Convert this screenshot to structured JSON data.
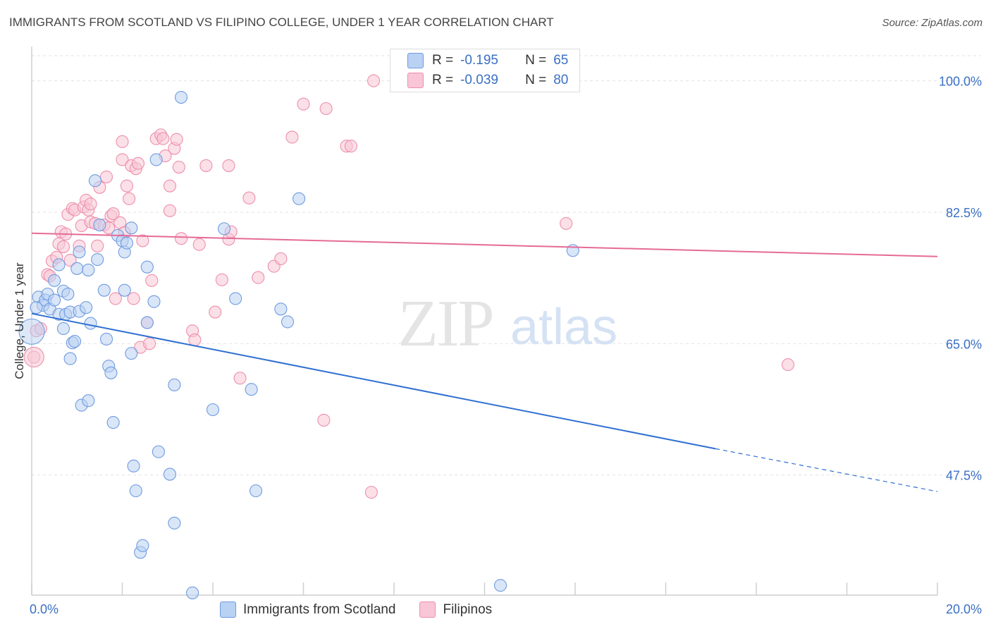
{
  "title": "IMMIGRANTS FROM SCOTLAND VS FILIPINO COLLEGE, UNDER 1 YEAR CORRELATION CHART",
  "source": "Source: ZipAtlas.com",
  "colors": {
    "blue_fill": "#b9d1f2",
    "blue_stroke": "#6f9be0",
    "blue_line": "#2f6fd1",
    "pink_fill": "#f8c6d6",
    "pink_stroke": "#ee8fac",
    "pink_line": "#e56b97",
    "tick_label": "#3a6fc4",
    "grid": "#e2e2e2"
  },
  "watermark": {
    "zip": "ZIP",
    "atlas": "atlas"
  },
  "correlation_box": {
    "rows": [
      {
        "r_label": "R =",
        "r_value": "-0.195",
        "n_label": "N =",
        "n_value": "65"
      },
      {
        "r_label": "R =",
        "r_value": "-0.039",
        "n_label": "N =",
        "n_value": "80"
      }
    ]
  },
  "chart_data": {
    "type": "scatter",
    "title": "IMMIGRANTS FROM SCOTLAND VS FILIPINO COLLEGE, UNDER 1 YEAR CORRELATION CHART",
    "xlabel": "",
    "ylabel": "College, Under 1 year",
    "xlim": [
      0,
      20
    ],
    "ylim": [
      31.5,
      104
    ],
    "x_tick_labels": [
      "0.0%",
      "20.0%"
    ],
    "y_ticks": [
      47.5,
      65.0,
      82.5,
      100.0
    ],
    "y_tick_labels": [
      "47.5%",
      "65.0%",
      "82.5%",
      "100.0%"
    ],
    "grid": true,
    "legend_position": "bottom-center",
    "series": [
      {
        "name": "Immigrants from Scotland",
        "color": "#6f9be0",
        "trend": {
          "x": [
            0,
            15.1,
            20
          ],
          "y": [
            69.0,
            51.0,
            45.3
          ],
          "solid_until_x": 15.1
        },
        "points": [
          [
            0.15,
            71.2
          ],
          [
            0.25,
            70.1
          ],
          [
            0.3,
            70.8
          ],
          [
            0.35,
            71.6
          ],
          [
            0.4,
            69.6
          ],
          [
            0.5,
            73.4
          ],
          [
            0.5,
            70.8
          ],
          [
            0.6,
            68.9
          ],
          [
            0.7,
            67.0
          ],
          [
            0.7,
            72.0
          ],
          [
            0.75,
            68.9
          ],
          [
            0.8,
            71.6
          ],
          [
            0.85,
            69.2
          ],
          [
            0.85,
            63.0
          ],
          [
            0.9,
            65.1
          ],
          [
            0.95,
            65.3
          ],
          [
            1.0,
            75.0
          ],
          [
            1.05,
            69.3
          ],
          [
            1.05,
            77.2
          ],
          [
            1.1,
            56.8
          ],
          [
            1.2,
            69.8
          ],
          [
            1.25,
            57.4
          ],
          [
            1.3,
            67.7
          ],
          [
            1.4,
            86.7
          ],
          [
            1.45,
            76.2
          ],
          [
            1.6,
            72.1
          ],
          [
            1.65,
            65.6
          ],
          [
            1.7,
            62.0
          ],
          [
            1.75,
            61.1
          ],
          [
            1.8,
            54.5
          ],
          [
            1.9,
            79.4
          ],
          [
            2.0,
            78.7
          ],
          [
            2.05,
            72.1
          ],
          [
            2.05,
            77.2
          ],
          [
            2.1,
            78.4
          ],
          [
            2.2,
            63.7
          ],
          [
            2.25,
            48.7
          ],
          [
            2.3,
            45.4
          ],
          [
            2.4,
            37.2
          ],
          [
            2.45,
            38.1
          ],
          [
            2.55,
            75.2
          ],
          [
            2.55,
            67.8
          ],
          [
            2.7,
            70.6
          ],
          [
            2.75,
            89.5
          ],
          [
            2.8,
            50.6
          ],
          [
            3.05,
            47.6
          ],
          [
            3.15,
            59.5
          ],
          [
            3.15,
            41.1
          ],
          [
            3.3,
            97.8
          ],
          [
            3.55,
            31.8
          ],
          [
            4.0,
            56.2
          ],
          [
            4.25,
            80.3
          ],
          [
            4.5,
            71.0
          ],
          [
            4.85,
            58.9
          ],
          [
            4.95,
            45.4
          ],
          [
            5.5,
            69.6
          ],
          [
            5.65,
            67.9
          ],
          [
            5.9,
            84.3
          ],
          [
            10.35,
            32.8
          ],
          [
            11.95,
            77.4
          ],
          [
            0.1,
            69.8
          ],
          [
            0.6,
            75.5
          ],
          [
            1.25,
            74.8
          ],
          [
            1.5,
            80.8
          ],
          [
            2.2,
            80.4
          ]
        ]
      },
      {
        "name": "Filipinos",
        "color": "#ee8fac",
        "trend": {
          "x": [
            0,
            20
          ],
          "y": [
            79.7,
            76.6
          ],
          "solid_until_x": 20
        },
        "points": [
          [
            0.05,
            63.2
          ],
          [
            0.1,
            66.7
          ],
          [
            0.2,
            67.0
          ],
          [
            0.35,
            74.2
          ],
          [
            0.4,
            74.0
          ],
          [
            0.45,
            76.0
          ],
          [
            0.55,
            76.5
          ],
          [
            0.6,
            78.3
          ],
          [
            0.65,
            79.9
          ],
          [
            0.7,
            77.9
          ],
          [
            0.75,
            79.6
          ],
          [
            0.8,
            82.2
          ],
          [
            0.85,
            76.1
          ],
          [
            0.9,
            83.0
          ],
          [
            0.95,
            82.8
          ],
          [
            1.05,
            78.0
          ],
          [
            1.1,
            80.7
          ],
          [
            1.15,
            83.2
          ],
          [
            1.2,
            84.1
          ],
          [
            1.25,
            82.8
          ],
          [
            1.3,
            83.6
          ],
          [
            1.3,
            81.2
          ],
          [
            1.4,
            81.0
          ],
          [
            1.45,
            78.0
          ],
          [
            1.5,
            85.8
          ],
          [
            1.6,
            80.8
          ],
          [
            1.65,
            87.2
          ],
          [
            1.7,
            80.4
          ],
          [
            1.75,
            82.0
          ],
          [
            1.8,
            82.3
          ],
          [
            1.85,
            71.0
          ],
          [
            1.95,
            81.1
          ],
          [
            2.0,
            89.5
          ],
          [
            2.0,
            91.9
          ],
          [
            2.05,
            79.8
          ],
          [
            2.1,
            86.0
          ],
          [
            2.15,
            84.3
          ],
          [
            2.2,
            88.7
          ],
          [
            2.25,
            71.0
          ],
          [
            2.3,
            88.3
          ],
          [
            2.35,
            89.0
          ],
          [
            2.4,
            64.5
          ],
          [
            2.45,
            78.7
          ],
          [
            2.55,
            67.8
          ],
          [
            2.6,
            65.0
          ],
          [
            2.65,
            73.4
          ],
          [
            2.75,
            92.3
          ],
          [
            2.85,
            92.8
          ],
          [
            2.9,
            92.3
          ],
          [
            2.95,
            90.0
          ],
          [
            3.05,
            82.7
          ],
          [
            3.05,
            86.0
          ],
          [
            3.15,
            91.0
          ],
          [
            3.2,
            92.2
          ],
          [
            3.25,
            88.5
          ],
          [
            3.3,
            79.0
          ],
          [
            3.55,
            66.7
          ],
          [
            3.6,
            65.5
          ],
          [
            3.7,
            78.2
          ],
          [
            3.85,
            88.7
          ],
          [
            4.05,
            69.2
          ],
          [
            4.2,
            73.5
          ],
          [
            4.35,
            88.7
          ],
          [
            4.35,
            78.9
          ],
          [
            4.4,
            79.9
          ],
          [
            4.6,
            60.4
          ],
          [
            4.8,
            84.4
          ],
          [
            5.0,
            73.8
          ],
          [
            5.35,
            75.3
          ],
          [
            5.5,
            76.3
          ],
          [
            5.75,
            92.5
          ],
          [
            6.0,
            96.9
          ],
          [
            6.45,
            54.8
          ],
          [
            6.5,
            96.3
          ],
          [
            6.95,
            91.3
          ],
          [
            7.05,
            91.3
          ],
          [
            7.5,
            45.2
          ],
          [
            7.55,
            100.0
          ],
          [
            11.8,
            81.0
          ],
          [
            16.7,
            62.2
          ]
        ]
      }
    ]
  },
  "axis": {
    "ylabel": "College, Under 1 year"
  },
  "legend": {
    "items": [
      {
        "label": "Immigrants from Scotland"
      },
      {
        "label": "Filipinos"
      }
    ]
  }
}
